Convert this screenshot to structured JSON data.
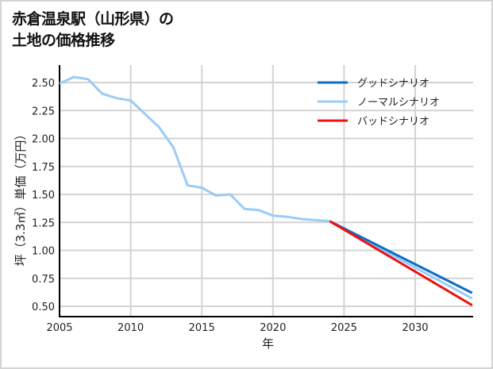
{
  "chart_data": {
    "type": "line",
    "title": "赤倉温泉駅（山形県）の\n土地の価格推移",
    "title_lines": [
      "赤倉温泉駅（山形県）の",
      "土地の価格推移"
    ],
    "xlabel": "年",
    "ylabel": "坪（3.3㎡）単価（万円）",
    "xlim": [
      2005,
      2034
    ],
    "ylim": [
      0.41,
      2.65
    ],
    "x_ticks": [
      2005,
      2010,
      2015,
      2020,
      2025,
      2030
    ],
    "y_ticks": [
      0.5,
      0.75,
      1.0,
      1.25,
      1.5,
      1.75,
      2.0,
      2.25,
      2.5
    ],
    "y_tick_labels": [
      "0.50",
      "0.75",
      "1.00",
      "1.25",
      "1.50",
      "1.75",
      "2.00",
      "2.25",
      "2.50"
    ],
    "grid": true,
    "legend_position": "upper right",
    "series": [
      {
        "name": "グッドシナリオ",
        "color": "#0a6fc4",
        "x": [
          2024,
          2034
        ],
        "values": [
          1.26,
          0.62
        ]
      },
      {
        "name": "ノーマルシナリオ",
        "color": "#99ccf7",
        "x": [
          2005,
          2006,
          2007,
          2008,
          2009,
          2010,
          2011,
          2012,
          2013,
          2014,
          2015,
          2016,
          2017,
          2018,
          2019,
          2020,
          2021,
          2022,
          2023,
          2024,
          2034
        ],
        "values": [
          2.49,
          2.55,
          2.53,
          2.4,
          2.36,
          2.34,
          2.22,
          2.1,
          1.92,
          1.58,
          1.56,
          1.49,
          1.5,
          1.37,
          1.36,
          1.31,
          1.3,
          1.28,
          1.27,
          1.26,
          0.57
        ]
      },
      {
        "name": "バッドシナリオ",
        "color": "#ee1111",
        "x": [
          2024,
          2034
        ],
        "values": [
          1.26,
          0.51
        ]
      }
    ]
  }
}
